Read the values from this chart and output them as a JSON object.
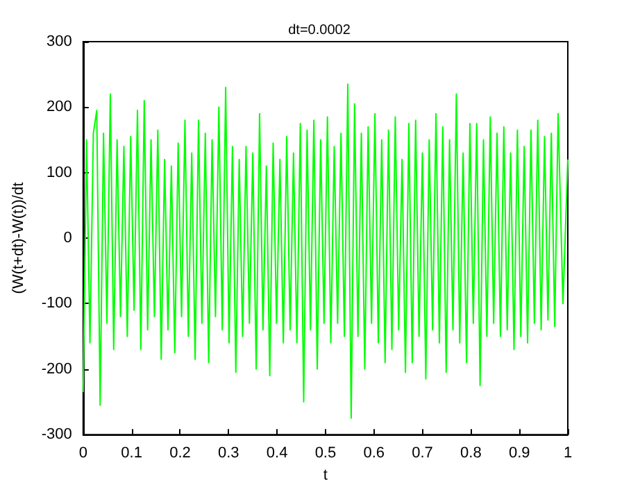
{
  "chart_data": {
    "type": "line",
    "title": "dt=0.0002",
    "xlabel": "t",
    "ylabel": "(W(t+dt)-W(t))/dt",
    "x": [
      0.0,
      0.007,
      0.014,
      0.021,
      0.028,
      0.035,
      0.042,
      0.049,
      0.056,
      0.063,
      0.07,
      0.077,
      0.084,
      0.091,
      0.098,
      0.105,
      0.112,
      0.119,
      0.126,
      0.133,
      0.14,
      0.147,
      0.154,
      0.161,
      0.168,
      0.175,
      0.182,
      0.189,
      0.196,
      0.203,
      0.21,
      0.217,
      0.224,
      0.231,
      0.238,
      0.245,
      0.252,
      0.259,
      0.266,
      0.273,
      0.28,
      0.287,
      0.294,
      0.301,
      0.308,
      0.315,
      0.322,
      0.329,
      0.336,
      0.343,
      0.35,
      0.357,
      0.364,
      0.371,
      0.378,
      0.385,
      0.392,
      0.399,
      0.406,
      0.413,
      0.42,
      0.427,
      0.434,
      0.441,
      0.448,
      0.455,
      0.462,
      0.469,
      0.476,
      0.483,
      0.49,
      0.497,
      0.504,
      0.511,
      0.518,
      0.525,
      0.532,
      0.539,
      0.546,
      0.553,
      0.56,
      0.567,
      0.574,
      0.581,
      0.588,
      0.595,
      0.602,
      0.609,
      0.616,
      0.623,
      0.63,
      0.637,
      0.644,
      0.651,
      0.658,
      0.665,
      0.672,
      0.679,
      0.686,
      0.693,
      0.7,
      0.707,
      0.714,
      0.721,
      0.728,
      0.735,
      0.742,
      0.749,
      0.756,
      0.763,
      0.77,
      0.777,
      0.784,
      0.791,
      0.798,
      0.805,
      0.812,
      0.819,
      0.826,
      0.833,
      0.84,
      0.847,
      0.854,
      0.861,
      0.868,
      0.875,
      0.882,
      0.889,
      0.896,
      0.903,
      0.91,
      0.917,
      0.924,
      0.931,
      0.938,
      0.945,
      0.952,
      0.959,
      0.966,
      0.973,
      0.98,
      0.99,
      1.0
    ],
    "series": [
      {
        "color": "#00ff00",
        "values": [
          -235,
          150,
          -160,
          160,
          195,
          -255,
          160,
          -130,
          220,
          -170,
          150,
          -120,
          140,
          -150,
          155,
          -110,
          195,
          -170,
          210,
          -140,
          150,
          -120,
          165,
          -185,
          120,
          -140,
          110,
          -175,
          145,
          -120,
          180,
          -150,
          130,
          -185,
          180,
          -130,
          160,
          -190,
          150,
          -120,
          200,
          -140,
          230,
          -160,
          140,
          -205,
          120,
          -150,
          140,
          -130,
          130,
          -200,
          190,
          -140,
          110,
          -210,
          145,
          -130,
          120,
          -160,
          155,
          -140,
          130,
          -160,
          175,
          -250,
          165,
          -140,
          180,
          -200,
          150,
          -130,
          185,
          -160,
          140,
          -130,
          160,
          -150,
          235,
          -275,
          205,
          -150,
          160,
          -200,
          170,
          -130,
          190,
          -160,
          150,
          -190,
          165,
          -170,
          185,
          -140,
          120,
          -205,
          175,
          -190,
          180,
          -150,
          130,
          -215,
          150,
          -140,
          190,
          -160,
          170,
          -205,
          150,
          -140,
          220,
          -160,
          130,
          -190,
          175,
          -130,
          175,
          -225,
          150,
          -150,
          185,
          -130,
          160,
          -150,
          170,
          -140,
          130,
          -170,
          165,
          -150,
          140,
          -160,
          165,
          -130,
          180,
          -140,
          155,
          -125,
          160,
          -135,
          190,
          -100,
          120
        ]
      }
    ],
    "xlim": [
      0,
      1
    ],
    "xticks": [
      0,
      0.1,
      0.2,
      0.3,
      0.4,
      0.5,
      0.6,
      0.7,
      0.8,
      0.9,
      1
    ],
    "ylim": [
      -300,
      300
    ],
    "yticks": [
      -300,
      -200,
      -100,
      0,
      100,
      200,
      300
    ],
    "marker": "none",
    "line_style": "solid"
  }
}
